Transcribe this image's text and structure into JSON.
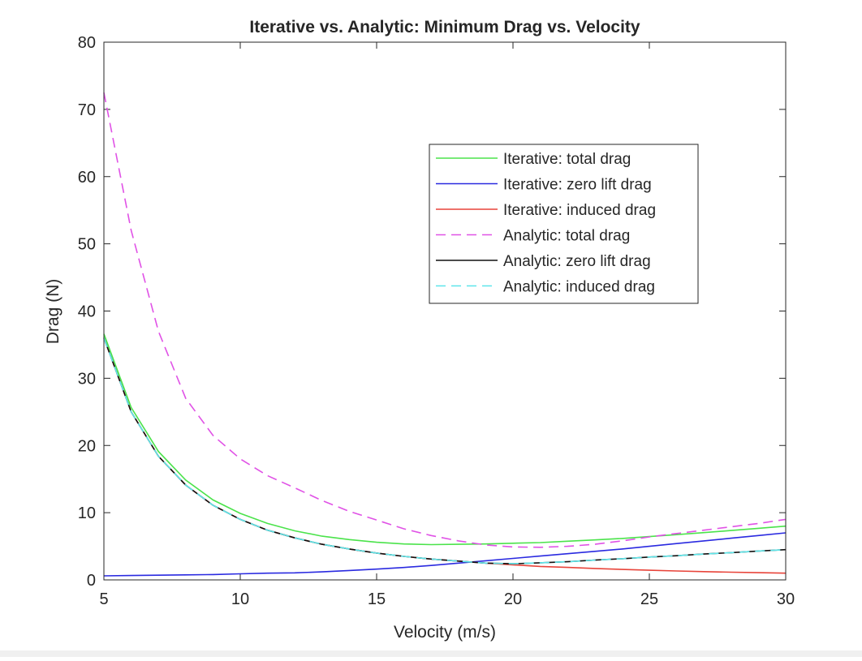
{
  "chart_data": {
    "type": "line",
    "title": "Iterative vs. Analytic: Minimum Drag vs. Velocity",
    "xlabel": "Velocity (m/s)",
    "ylabel": "Drag (N)",
    "xlim": [
      5,
      30
    ],
    "ylim": [
      0,
      80
    ],
    "xticks": [
      5,
      10,
      15,
      20,
      25,
      30
    ],
    "yticks": [
      0,
      10,
      20,
      30,
      40,
      50,
      60,
      70,
      80
    ],
    "grid": false,
    "legend_position": "upper-middle-right",
    "x": [
      5,
      6,
      7,
      8,
      9,
      10,
      11,
      12,
      13,
      14,
      15,
      16,
      17,
      18,
      19,
      20,
      21,
      22,
      23,
      24,
      25,
      26,
      27,
      28,
      29,
      30
    ],
    "series": [
      {
        "name": "Iterative: total drag",
        "color": "#4be34b",
        "dash": "solid",
        "values": [
          36.6,
          25.65,
          19.1,
          14.85,
          11.9,
          9.9,
          8.4,
          7.3,
          6.5,
          6.0,
          5.6,
          5.35,
          5.25,
          5.3,
          5.35,
          5.45,
          5.55,
          5.76,
          5.95,
          6.16,
          6.44,
          6.73,
          7.03,
          7.35,
          7.67,
          8.0
        ]
      },
      {
        "name": "Iterative: zero lift drag",
        "color": "#2a2ae0",
        "dash": "solid",
        "values": [
          0.6,
          0.65,
          0.7,
          0.75,
          0.8,
          0.9,
          1.0,
          1.05,
          1.2,
          1.4,
          1.6,
          1.85,
          2.15,
          2.5,
          2.85,
          3.2,
          3.55,
          3.9,
          4.25,
          4.6,
          5.0,
          5.4,
          5.8,
          6.2,
          6.6,
          7.0
        ]
      },
      {
        "name": "Iterative: induced drag",
        "color": "#e8443a",
        "dash": "solid",
        "values": [
          36,
          25,
          18.4,
          14.1,
          11.1,
          9.0,
          7.4,
          6.25,
          5.3,
          4.6,
          4.0,
          3.5,
          3.1,
          2.8,
          2.5,
          2.25,
          2.0,
          1.86,
          1.7,
          1.56,
          1.44,
          1.33,
          1.23,
          1.15,
          1.07,
          1.0
        ]
      },
      {
        "name": "Analytic: total drag",
        "color": "#e052e6",
        "dash": "dashed",
        "values": [
          72.5,
          52,
          37,
          27,
          21.5,
          18,
          15.5,
          13.7,
          11.8,
          10.2,
          8.9,
          7.6,
          6.6,
          5.8,
          5.2,
          4.9,
          4.85,
          5.0,
          5.3,
          5.8,
          6.4,
          6.9,
          7.4,
          7.9,
          8.4,
          9.0
        ]
      },
      {
        "name": "Analytic: zero lift drag",
        "color": "#111111",
        "dash": "solid",
        "values": [
          36,
          25,
          18.4,
          14.1,
          11.1,
          9.0,
          7.4,
          6.25,
          5.3,
          4.6,
          4.0,
          3.5,
          3.1,
          2.8,
          2.5,
          2.4,
          2.55,
          2.7,
          2.95,
          3.15,
          3.4,
          3.6,
          3.85,
          4.05,
          4.3,
          4.5
        ]
      },
      {
        "name": "Analytic: induced drag",
        "color": "#5ee6ea",
        "dash": "dashed",
        "values": [
          36,
          25,
          18.4,
          14.1,
          11.1,
          9.0,
          7.4,
          6.25,
          5.3,
          4.6,
          4.0,
          3.5,
          3.1,
          2.8,
          2.5,
          2.4,
          2.55,
          2.7,
          2.95,
          3.15,
          3.4,
          3.6,
          3.85,
          4.05,
          4.3,
          4.5
        ]
      }
    ]
  }
}
